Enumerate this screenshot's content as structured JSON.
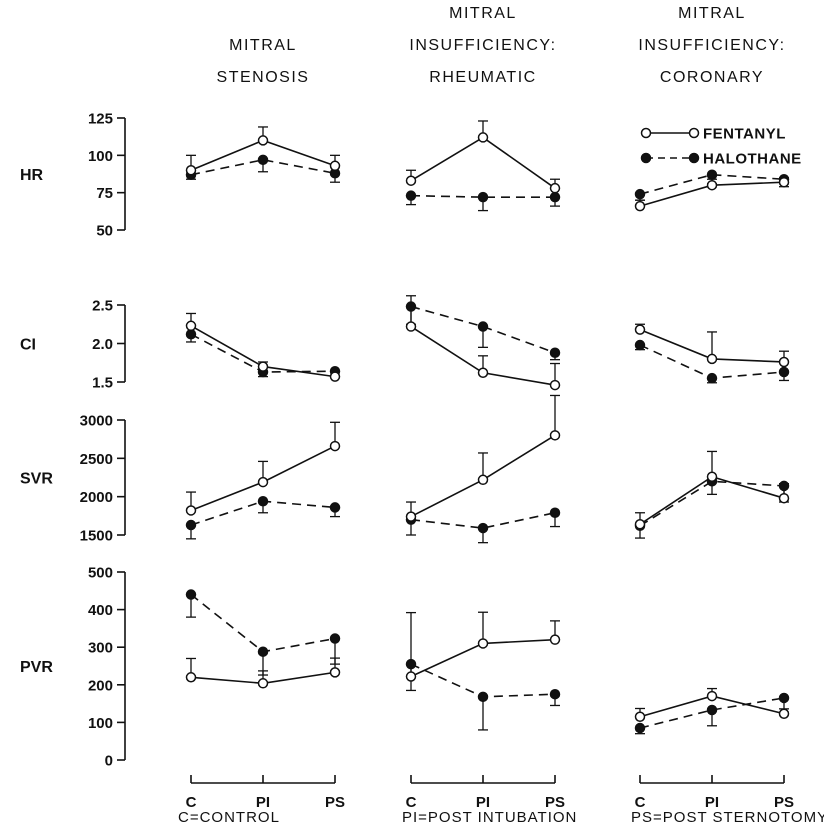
{
  "columns": [
    {
      "label_lines": [
        "MITRAL",
        "STENOSIS"
      ]
    },
    {
      "label_lines": [
        "MITRAL",
        "INSUFFICIENCY:",
        "RHEUMATIC"
      ]
    },
    {
      "label_lines": [
        "MITRAL",
        "INSUFFICIENCY:",
        "CORONARY"
      ]
    }
  ],
  "legend": [
    {
      "name": "FENTANYL",
      "marker": "open-circle",
      "line": "solid"
    },
    {
      "name": "HALOTHANE",
      "marker": "filled-circle",
      "line": "dashed"
    }
  ],
  "footnote": {
    "items": [
      "C=CONTROL",
      "PI=POST INTUBATION",
      "PS=POST STERNOTOMY"
    ]
  },
  "chart_data": {
    "type": "line",
    "categories": [
      "C",
      "PI",
      "PS"
    ],
    "series_names": [
      "FENTANYL",
      "HALOTHANE"
    ],
    "colors": {
      "line": "#111111",
      "open_marker_fill": "#ffffff",
      "filled_marker_fill": "#111111"
    },
    "rows": [
      {
        "label": "HR",
        "ylim": [
          50,
          125
        ],
        "ticks": [
          50,
          75,
          100,
          125
        ],
        "panels": [
          {
            "fentanyl": [
              90,
              110,
              93
            ],
            "fentanyl_err": [
              10,
              9,
              7
            ],
            "halothane": [
              87,
              97,
              88
            ],
            "halothane_err": [
              3,
              8,
              6
            ]
          },
          {
            "fentanyl": [
              83,
              112,
              78
            ],
            "fentanyl_err": [
              7,
              11,
              6
            ],
            "halothane": [
              73,
              72,
              72
            ],
            "halothane_err": [
              6,
              9,
              6
            ]
          },
          {
            "fentanyl": [
              66,
              80,
              82
            ],
            "fentanyl_err": [
              4,
              4,
              3
            ],
            "halothane": [
              74,
              87,
              84
            ],
            "halothane_err": [
              4,
              6,
              5
            ]
          }
        ]
      },
      {
        "label": "CI",
        "ylim": [
          1.5,
          2.5
        ],
        "ticks": [
          1.5,
          2.0,
          2.5
        ],
        "tick_labels": [
          "1.5",
          "2.0",
          "2.5"
        ],
        "panels": [
          {
            "fentanyl": [
              2.23,
              1.7,
              1.57
            ],
            "fentanyl_err": [
              0.16,
              0.06,
              0.06
            ],
            "halothane": [
              2.12,
              1.63,
              1.64
            ],
            "halothane_err": [
              0.1,
              0.06,
              0.08
            ]
          },
          {
            "fentanyl": [
              2.22,
              1.62,
              1.46
            ],
            "fentanyl_err": [
              0.4,
              0.22,
              0.28
            ],
            "halothane": [
              2.48,
              2.22,
              1.88
            ],
            "halothane_err": [
              0.23,
              0.27,
              0.09
            ]
          },
          {
            "fentanyl": [
              2.18,
              1.8,
              1.76
            ],
            "fentanyl_err": [
              0.07,
              0.35,
              0.14
            ],
            "halothane": [
              1.98,
              1.55,
              1.63
            ],
            "halothane_err": [
              0.06,
              0.06,
              0.11
            ]
          }
        ]
      },
      {
        "label": "SVR",
        "ylim": [
          1500,
          3000
        ],
        "ticks": [
          1500,
          2000,
          2500,
          3000
        ],
        "panels": [
          {
            "fentanyl": [
              1820,
              2190,
              2660
            ],
            "fentanyl_err": [
              240,
              270,
              310
            ],
            "halothane": [
              1630,
              1940,
              1860
            ],
            "halothane_err": [
              180,
              150,
              120
            ]
          },
          {
            "fentanyl": [
              1740,
              2220,
              2800
            ],
            "fentanyl_err": [
              190,
              350,
              520
            ],
            "halothane": [
              1700,
              1590,
              1790
            ],
            "halothane_err": [
              200,
              190,
              180
            ]
          },
          {
            "fentanyl": [
              1640,
              2260,
              1980
            ],
            "fentanyl_err": [
              150,
              330,
              190
            ],
            "halothane": [
              1620,
              2200,
              2140
            ],
            "halothane_err": [
              160,
              170,
              210
            ]
          }
        ]
      },
      {
        "label": "PVR",
        "ylim": [
          0,
          500
        ],
        "ticks": [
          0,
          100,
          200,
          300,
          400,
          500
        ],
        "panels": [
          {
            "fentanyl": [
              220,
              204,
              233
            ],
            "fentanyl_err": [
              50,
              33,
              38
            ],
            "halothane": [
              440,
              288,
              323
            ],
            "halothane_err": [
              60,
              62,
              68
            ]
          },
          {
            "fentanyl": [
              222,
              310,
              320
            ],
            "fentanyl_err": [
              170,
              83,
              50
            ],
            "halothane": [
              255,
              168,
              175
            ],
            "halothane_err": [
              70,
              88,
              30
            ]
          },
          {
            "fentanyl": [
              115,
              170,
              123
            ],
            "fentanyl_err": [
              22,
              20,
              13
            ],
            "halothane": [
              85,
              133,
              165
            ],
            "halothane_err": [
              15,
              42,
              38
            ]
          }
        ]
      }
    ]
  }
}
